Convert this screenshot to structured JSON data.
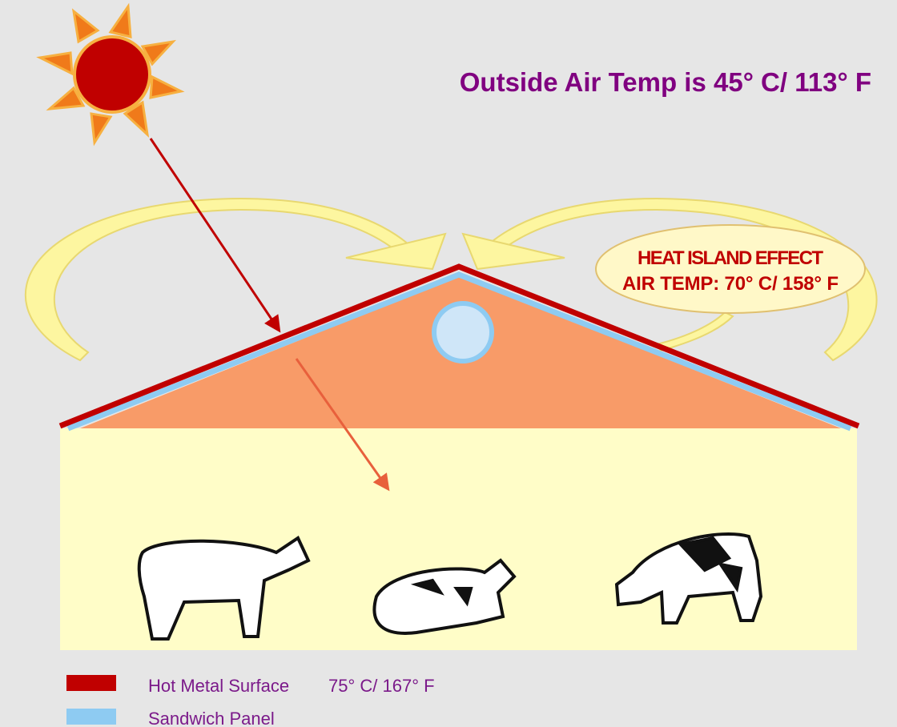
{
  "title": "Outside Air Temp is 45° C/ 113° F",
  "heat_island": {
    "line1": "HEAT ISLAND EFFECT",
    "line2": "AIR TEMP: 70° C/ 158° F"
  },
  "legend": [
    {
      "label": "Hot Metal Surface",
      "temp": "75° C/ 167° F"
    },
    {
      "label": "Sandwich Panel"
    }
  ]
}
